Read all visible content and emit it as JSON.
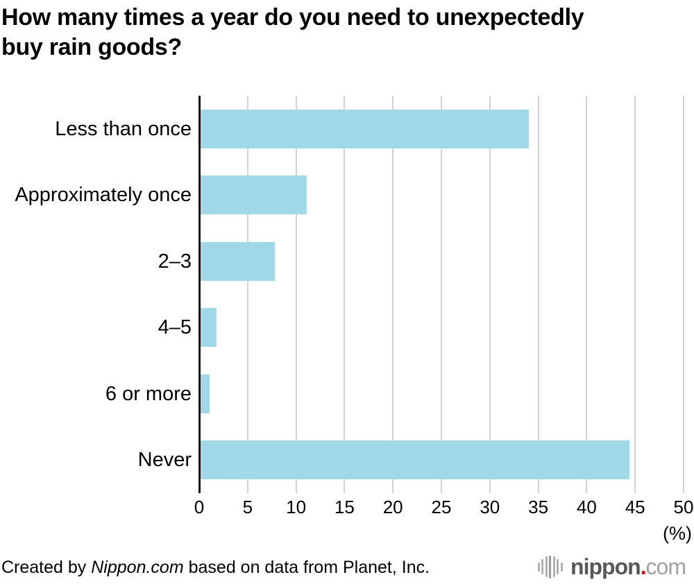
{
  "title": "How many times a year do you need to unexpectedly buy rain goods?",
  "title_lines": [
    "How many times a year do you need to unexpectedly",
    "buy rain goods?"
  ],
  "chart_data": {
    "type": "bar",
    "orientation": "horizontal",
    "title": "How many times a year do you need to unexpectedly buy rain goods?",
    "categories": [
      "Less than once",
      "Approximately once",
      "2–3",
      "4–5",
      "6 or more",
      "Never"
    ],
    "values": [
      34.0,
      11.1,
      7.8,
      1.8,
      1.1,
      44.4
    ],
    "xlabel": "(%)",
    "xlim": [
      0,
      50
    ],
    "xticks": [
      0,
      5,
      10,
      15,
      20,
      25,
      30,
      35,
      40,
      45,
      50
    ],
    "grid": true,
    "legend": false,
    "bar_color": "#a0d8e8",
    "gridline_color": "#d2d2d2",
    "axis_color": "#111111"
  },
  "footer": {
    "credit_prefix": "Created by ",
    "credit_source": "Nippon.com",
    "credit_suffix": " based on data from Planet, Inc."
  },
  "logo": {
    "brand": "nippon",
    "dot": ".",
    "tld": "com",
    "brand_color": "#595757",
    "dot_color": "#e60012",
    "tld_color": "#9fa0a0",
    "icon_bar_heights": [
      13,
      22,
      30,
      33,
      30,
      22,
      13
    ]
  }
}
